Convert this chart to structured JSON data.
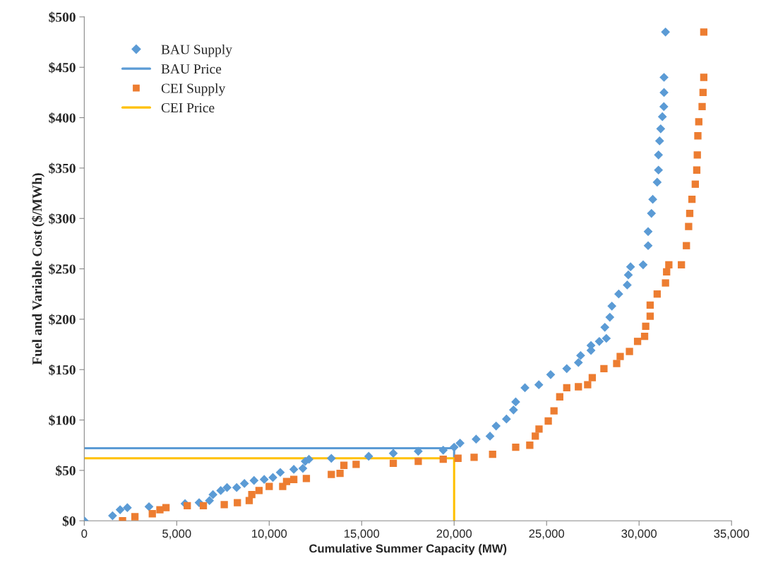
{
  "chart_data": {
    "type": "scatter",
    "xlabel": "Cumulative Summer Capacity (MW)",
    "ylabel": "Fuel and Variable Cost ($/MWh)",
    "xlim": [
      0,
      35000
    ],
    "ylim": [
      0,
      500
    ],
    "xticks": [
      0,
      {
        "value": 5000,
        "label": "5,000"
      },
      {
        "value": 10000,
        "label": "10,000"
      },
      {
        "value": 15000,
        "label": "15,000"
      },
      {
        "value": 20000,
        "label": "20,000"
      },
      {
        "value": 25000,
        "label": "25,000"
      },
      {
        "value": 30000,
        "label": "30,000"
      },
      {
        "value": 35000,
        "label": "35,000"
      }
    ],
    "yticks": [
      {
        "value": 0,
        "label": "$0"
      },
      {
        "value": 50,
        "label": "$50"
      },
      {
        "value": 100,
        "label": "$100"
      },
      {
        "value": 150,
        "label": "$150"
      },
      {
        "value": 200,
        "label": "$200"
      },
      {
        "value": 250,
        "label": "$250"
      },
      {
        "value": 300,
        "label": "$300"
      },
      {
        "value": 350,
        "label": "$350"
      },
      {
        "value": 400,
        "label": "$400"
      },
      {
        "value": 450,
        "label": "$450"
      },
      {
        "value": 500,
        "label": "$500"
      }
    ],
    "grid": false,
    "legend": "top left",
    "series": [
      {
        "name": "BAU Supply",
        "marker": "diamond",
        "color": "#5b9bd5",
        "x": [
          0,
          1530,
          1940,
          2330,
          3500,
          5450,
          6210,
          6770,
          6960,
          7380,
          7720,
          8240,
          8660,
          9180,
          9730,
          10200,
          10600,
          11330,
          11820,
          11950,
          12150,
          13360,
          15380,
          16710,
          18060,
          19410,
          20000,
          20320,
          21190,
          21940,
          22270,
          22830,
          23210,
          23330,
          23830,
          24580,
          25220,
          26090,
          26720,
          26840,
          27400,
          27400,
          27850,
          28230,
          28150,
          28420,
          28530,
          28900,
          29360,
          29420,
          29540,
          30220,
          30490,
          30490,
          30670,
          30740,
          30980,
          31050,
          31050,
          31110,
          31170,
          31260,
          31340,
          31350,
          31350,
          31430
        ],
        "values": [
          0,
          5,
          11,
          13,
          14,
          17,
          18,
          20,
          26,
          30,
          33,
          33,
          37,
          40,
          41,
          43,
          48,
          51,
          52,
          59,
          61,
          62,
          64,
          67,
          69,
          70,
          73,
          77,
          81,
          84,
          94,
          101,
          110,
          118,
          132,
          135,
          145,
          151,
          157,
          164,
          169,
          174,
          178,
          181,
          192,
          202,
          213,
          225,
          234,
          244,
          252,
          254,
          273,
          287,
          305,
          319,
          336,
          348,
          363,
          377,
          389,
          401,
          411,
          425,
          440,
          485
        ]
      },
      {
        "name": "BAU Price",
        "type": "line",
        "line_style": "solid",
        "marker": "none",
        "color": "#5b9bd5",
        "x": [
          0,
          20000,
          20000
        ],
        "values": [
          72,
          72,
          62
        ]
      },
      {
        "name": "CEI Supply",
        "marker": "square",
        "color": "#ed7d31",
        "x": [
          2070,
          2740,
          3680,
          4090,
          4420,
          5570,
          6440,
          7570,
          8280,
          8920,
          9060,
          9450,
          10000,
          10730,
          10940,
          11330,
          12010,
          13360,
          13830,
          14040,
          14700,
          16710,
          18060,
          19410,
          20210,
          21080,
          22080,
          23330,
          24090,
          24390,
          24590,
          25090,
          25400,
          25710,
          26090,
          26720,
          27220,
          27470,
          28100,
          28790,
          28980,
          29480,
          29920,
          30300,
          30360,
          30600,
          30600,
          30980,
          31430,
          31490,
          31610,
          32290,
          32560,
          32680,
          32740,
          32860,
          33040,
          33120,
          33150,
          33180,
          33230,
          33410,
          33460,
          33500,
          33500
        ],
        "values": [
          0,
          4,
          7,
          11,
          13,
          15,
          15,
          16,
          18,
          20,
          26,
          30,
          34,
          34,
          39,
          41,
          42,
          46,
          47,
          55,
          56,
          57,
          59,
          61,
          62,
          63,
          66,
          73,
          75,
          84,
          91,
          99,
          109,
          123,
          132,
          133,
          135,
          142,
          151,
          156,
          163,
          168,
          178,
          183,
          193,
          203,
          214,
          225,
          236,
          247,
          254,
          254,
          273,
          292,
          305,
          319,
          334,
          348,
          363,
          382,
          396,
          411,
          425,
          440,
          485
        ]
      },
      {
        "name": "CEI Price",
        "type": "line",
        "line_style": "solid",
        "marker": "none",
        "color": "#ffc000",
        "x": [
          0,
          20000,
          20000
        ],
        "values": [
          62,
          62,
          0
        ]
      }
    ]
  }
}
